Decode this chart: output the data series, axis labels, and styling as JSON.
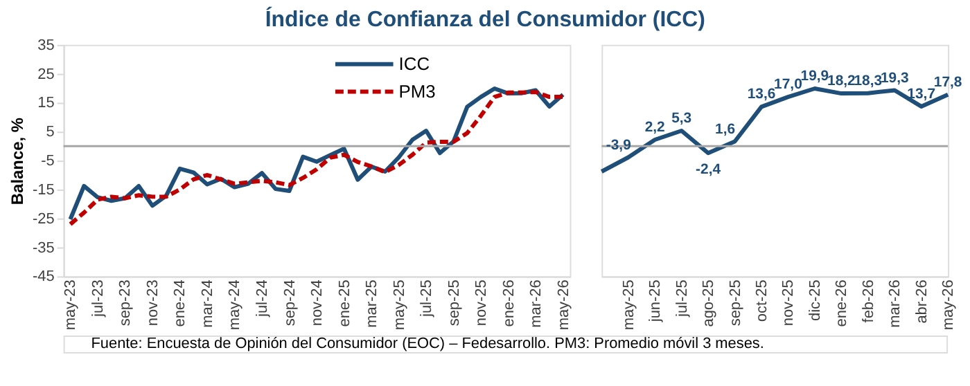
{
  "chart_data": [
    {
      "type": "line",
      "title": "Índice de Confianza del Consumidor (ICC)",
      "ylabel": "Balance, %",
      "categories": [
        "may-23",
        null,
        "jul-23",
        null,
        "sep-23",
        null,
        "nov-23",
        null,
        "ene-24",
        null,
        "mar-24",
        null,
        "may-24",
        null,
        "jul-24",
        null,
        "sep-24",
        null,
        "nov-24",
        null,
        "ene-25",
        null,
        "mar-25",
        null,
        "may-25",
        null,
        "jul-25",
        null,
        "sep-25",
        null,
        "nov-25",
        null,
        "ene-26",
        null,
        "mar-26",
        null,
        "may-26"
      ],
      "series": [
        {
          "name": "ICC",
          "color": "#1f4e79",
          "line_style": "solid",
          "values": [
            -25.3,
            -13.8,
            -17.7,
            -18.9,
            -18,
            -13.8,
            -20.6,
            -17.2,
            -7.8,
            -9.1,
            -13.2,
            -11.3,
            -14.2,
            -13,
            -9.3,
            -14.8,
            -15.5,
            -3.7,
            -5.4,
            -3.1,
            -0.9,
            -11.6,
            -7.1,
            -8.8,
            -3.9,
            2.2,
            5.3,
            -2.4,
            1.6,
            13.6,
            17.0,
            19.9,
            18.2,
            18.3,
            19.3,
            13.7,
            17.8
          ]
        },
        {
          "name": "PM3",
          "color": "#c00000",
          "line_style": "dashed",
          "values": [
            -27,
            -23,
            -18.5,
            -17.5,
            -18,
            -17,
            -17.5,
            -17.5,
            -15,
            -11.5,
            -10,
            -11.5,
            -13,
            -12.5,
            -12,
            -12.5,
            -13.5,
            -11,
            -8,
            -4,
            -3,
            -5.5,
            -7,
            -9,
            -6.5,
            -3,
            1.2,
            1.5,
            1.5,
            4.5,
            10.5,
            17,
            18.5,
            18.5,
            18.7,
            17,
            17
          ]
        }
      ],
      "ylim": [
        -45,
        35
      ],
      "yticks": [
        -45,
        -35,
        -25,
        -15,
        -5,
        5,
        15,
        25,
        35
      ],
      "ref_lines": [
        {
          "axis": "y",
          "value": 0,
          "color": "#a6a6a6"
        }
      ],
      "legend": "top right",
      "grid": false,
      "annotations": [
        "Fuente: Encuesta de Opinión del Consumidor (EOC) – Fedesarrollo. PM3: Promedio móvil 3 meses."
      ]
    },
    {
      "type": "line",
      "categories": [
        null,
        "may-25",
        "jun-25",
        "jul-25",
        "ago-25",
        "sep-25",
        "oct-25",
        "nov-25",
        "dic-25",
        "ene-26",
        "feb-26",
        "mar-26",
        "abr-26",
        "may-26"
      ],
      "series": [
        {
          "color": "#1f4e79",
          "values": [
            -8.8,
            -3.9,
            2.2,
            5.3,
            -2.4,
            1.6,
            13.6,
            17.0,
            19.9,
            18.2,
            18.3,
            19.3,
            13.7,
            17.8
          ],
          "value_labels": [
            null,
            "-3,9",
            "2,2",
            "5,3",
            "-2,4",
            "1,6",
            "13,6",
            "17,0",
            "19,9",
            "18,2",
            "18,3",
            "19,3",
            "13,7",
            "17,8"
          ]
        }
      ],
      "ylim": [
        -45,
        35
      ],
      "tick_labels": "x",
      "grid": false,
      "legend": false,
      "ref_lines": [
        {
          "axis": "y",
          "value": 0,
          "color": "#a6a6a6"
        }
      ]
    }
  ]
}
